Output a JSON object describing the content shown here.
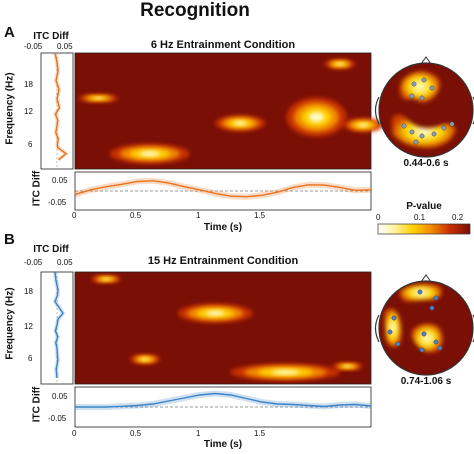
{
  "title": "Recognition",
  "colorbar": {
    "label": "P-value",
    "ticks": [
      "0",
      "0.1",
      "0.2"
    ],
    "stops": [
      "#ffffff",
      "#fff3a0",
      "#ffd000",
      "#f08a00",
      "#c83000",
      "#7a0f05"
    ]
  },
  "panels": [
    {
      "letter": "A",
      "condition": "6 Hz Entrainment Condition",
      "itc_diff_label": "ITC Diff",
      "itc_diff_ticks": [
        "-0.05",
        "0.05"
      ],
      "freq_label": "Frequency (Hz)",
      "freq_ticks": [
        "18",
        "12",
        "6"
      ],
      "itc_y_label": "ITC Diff",
      "itc_y_ticks": [
        "0.05",
        "-0.05"
      ],
      "time_label": "Time (s)",
      "time_ticks": [
        "0",
        "0.5",
        "1",
        "1.5"
      ],
      "topo_label": "0.44-0.6 s",
      "color": "#e8731e"
    },
    {
      "letter": "B",
      "condition": "15 Hz Entrainment Condition",
      "itc_diff_label": "ITC Diff",
      "itc_diff_ticks": [
        "-0.05",
        "0.05"
      ],
      "freq_label": "Frequency (Hz)",
      "freq_ticks": [
        "18",
        "12",
        "6"
      ],
      "itc_y_label": "ITC Diff",
      "itc_y_ticks": [
        "0.05",
        "-0.05"
      ],
      "time_label": "Time (s)",
      "time_ticks": [
        "0",
        "0.5",
        "1",
        "1.5"
      ],
      "topo_label": "0.74-1.06 s",
      "color": "#3b84c8"
    }
  ],
  "chart_data": [
    {
      "type": "heatmap",
      "panel": "A",
      "title": "6 Hz Entrainment Condition",
      "xlabel": "Time (s)",
      "ylabel": "Frequency (Hz)",
      "xlim": [
        0,
        1.9
      ],
      "ylim": [
        3,
        22
      ],
      "background_p": 0.2,
      "blobs": [
        {
          "t": 0.48,
          "f": 5.5,
          "dt": 0.16,
          "df": 1.0
        },
        {
          "t": 1.06,
          "f": 10.5,
          "dt": 0.1,
          "df": 0.8
        },
        {
          "t": 1.55,
          "f": 11.5,
          "dt": 0.12,
          "df": 2.0
        },
        {
          "t": 1.85,
          "f": 10.2,
          "dt": 0.08,
          "df": 0.7
        },
        {
          "t": 1.7,
          "f": 20.2,
          "dt": 0.06,
          "df": 0.5
        },
        {
          "t": 0.15,
          "f": 14.6,
          "dt": 0.08,
          "df": 0.4
        }
      ]
    },
    {
      "type": "line",
      "panel": "A",
      "xlabel": "Time (s)",
      "ylabel": "ITC Diff",
      "xlim": [
        0,
        1.9
      ],
      "ylim": [
        -0.08,
        0.08
      ],
      "x": [
        0,
        0.1,
        0.2,
        0.3,
        0.4,
        0.5,
        0.6,
        0.7,
        0.8,
        0.9,
        1.0,
        1.1,
        1.2,
        1.3,
        1.4,
        1.5,
        1.6,
        1.7,
        1.8,
        1.9
      ],
      "y": [
        -0.015,
        0.005,
        0.018,
        0.028,
        0.04,
        0.043,
        0.034,
        0.018,
        0.005,
        -0.01,
        -0.022,
        -0.024,
        -0.018,
        -0.005,
        0.015,
        0.026,
        0.025,
        0.015,
        0.003,
        0.005
      ]
    },
    {
      "type": "line",
      "panel": "A",
      "xlabel": "ITC Diff",
      "ylabel": "Frequency (Hz)",
      "xlim": [
        -0.08,
        0.08
      ],
      "ylim": [
        3,
        22
      ],
      "x": [
        -0.01,
        0.0,
        0.005,
        -0.005,
        0.01,
        0.0,
        0.012,
        -0.008,
        0.004,
        0.0,
        -0.006,
        0.006,
        0.002,
        0.004,
        0.045,
        0.008
      ],
      "y": [
        22,
        20.5,
        19,
        17.5,
        16,
        14.5,
        13,
        12,
        11,
        10,
        9,
        8,
        7,
        6.5,
        5.5,
        4.5
      ]
    },
    {
      "type": "heatmap",
      "panel": "B",
      "title": "15 Hz Entrainment Condition",
      "xlabel": "Time (s)",
      "ylabel": "Frequency (Hz)",
      "xlim": [
        0,
        1.9
      ],
      "ylim": [
        3,
        22
      ],
      "background_p": 0.2,
      "blobs": [
        {
          "t": 0.9,
          "f": 15.0,
          "dt": 0.15,
          "df": 1.0
        },
        {
          "t": 1.35,
          "f": 5.0,
          "dt": 0.22,
          "df": 0.9
        },
        {
          "t": 0.45,
          "f": 7.2,
          "dt": 0.06,
          "df": 0.5
        },
        {
          "t": 1.75,
          "f": 6.0,
          "dt": 0.06,
          "df": 0.4
        },
        {
          "t": 0.2,
          "f": 20.8,
          "dt": 0.06,
          "df": 0.4
        }
      ]
    },
    {
      "type": "line",
      "panel": "B",
      "xlabel": "Time (s)",
      "ylabel": "ITC Diff",
      "xlim": [
        0,
        1.9
      ],
      "ylim": [
        -0.08,
        0.08
      ],
      "x": [
        0,
        0.1,
        0.2,
        0.3,
        0.4,
        0.5,
        0.6,
        0.7,
        0.8,
        0.9,
        1.0,
        1.1,
        1.2,
        1.3,
        1.4,
        1.5,
        1.6,
        1.7,
        1.8,
        1.9
      ],
      "y": [
        0.0,
        0.0,
        0.0,
        0.003,
        0.006,
        0.012,
        0.024,
        0.036,
        0.048,
        0.054,
        0.048,
        0.034,
        0.02,
        0.012,
        0.01,
        0.006,
        0.002,
        0.008,
        0.01,
        0.004
      ]
    },
    {
      "type": "line",
      "panel": "B",
      "xlabel": "ITC Diff",
      "ylabel": "Frequency (Hz)",
      "xlim": [
        -0.08,
        0.08
      ],
      "ylim": [
        3,
        22
      ],
      "x": [
        -0.01,
        -0.005,
        0.005,
        0.002,
        -0.01,
        0.01,
        0.03,
        0.005,
        0.0,
        -0.008,
        0.004,
        -0.006,
        0.0,
        0.004,
        -0.004,
        0.0
      ],
      "y": [
        22,
        20.5,
        19,
        18,
        17,
        16,
        15,
        14,
        13,
        12,
        11,
        10,
        9,
        7,
        5.5,
        4
      ]
    }
  ]
}
